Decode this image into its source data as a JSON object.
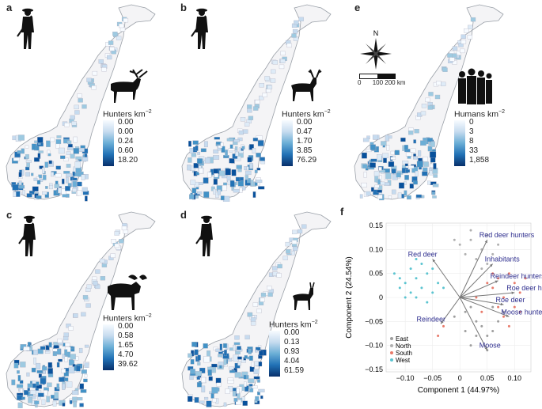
{
  "panels": [
    {
      "label": "a",
      "legend_title": "Hunters km",
      "exponent": "−2",
      "ticks": [
        "0.00",
        "0.00",
        "0.24",
        "0.60",
        "18.20"
      ],
      "animal": "reindeer-icon"
    },
    {
      "label": "b",
      "legend_title": "Hunters km",
      "exponent": "−2",
      "ticks": [
        "0.00",
        "0.47",
        "1.70",
        "3.85",
        "76.29"
      ],
      "animal": "red-deer-icon"
    },
    {
      "label": "e",
      "legend_title": "Humans km",
      "exponent": "−2",
      "ticks": [
        "0",
        "3",
        "8",
        "33",
        "1,858"
      ],
      "animal": "humans-icon"
    },
    {
      "label": "c",
      "legend_title": "Hunters km",
      "exponent": "−2",
      "ticks": [
        "0.00",
        "0.58",
        "1.65",
        "4.70",
        "39.62"
      ],
      "animal": "moose-icon"
    },
    {
      "label": "d",
      "legend_title": "Hunters km",
      "exponent": "−2",
      "ticks": [
        "0.00",
        "0.13",
        "0.93",
        "4.04",
        "61.59"
      ],
      "animal": "roe-deer-icon"
    }
  ],
  "compass": {
    "north": "N",
    "scale_labels": [
      "0",
      "100",
      "200 km"
    ]
  },
  "colors": {
    "dark_blue": "#08519c",
    "mid_blue": "#4292c6",
    "light_blue": "#c6dbef",
    "east": "#9e9e9e",
    "north": "#b0b0b0",
    "south": "#e87a6a",
    "west": "#5bc4d0",
    "arrow": "#777777",
    "arrow_label": "#2f2f8f"
  },
  "chart_data": {
    "label": "f",
    "type": "scatter",
    "title": "",
    "xlabel": "Component 1 (44.97%)",
    "ylabel": "Component 2 (24.54%)",
    "xlim": [
      -0.135,
      0.13
    ],
    "ylim": [
      -0.155,
      0.155
    ],
    "xticks": [
      -0.1,
      -0.05,
      0,
      0.05,
      0.1
    ],
    "xtick_labels": [
      "−0.10",
      "−0.05",
      "0",
      "0.05",
      "0.10"
    ],
    "yticks": [
      -0.15,
      -0.1,
      -0.05,
      0,
      0.05,
      0.1,
      0.15
    ],
    "ytick_labels": [
      "−0.15",
      "−0.10",
      "−0.05",
      "0",
      "0.05",
      "0.10",
      "0.15"
    ],
    "grid": true,
    "legend": {
      "position": "bottom-left",
      "entries": [
        "East",
        "North",
        "South",
        "West"
      ]
    },
    "series": [
      {
        "name": "East",
        "points": [
          [
            0.01,
            -0.03
          ],
          [
            0.03,
            -0.05
          ],
          [
            0.05,
            -0.08
          ],
          [
            0.02,
            -0.1
          ],
          [
            0.06,
            -0.02
          ],
          [
            0.04,
            -0.06
          ],
          [
            -0.01,
            -0.04
          ],
          [
            0.07,
            -0.05
          ],
          [
            0.03,
            -0.08
          ],
          [
            0.05,
            -0.11
          ],
          [
            0.01,
            -0.07
          ],
          [
            0.08,
            -0.03
          ],
          [
            0.02,
            -0.02
          ],
          [
            0.06,
            -0.07
          ]
        ]
      },
      {
        "name": "North",
        "points": [
          [
            0.02,
            0.12
          ],
          [
            0.04,
            0.1
          ],
          [
            0.0,
            0.11
          ],
          [
            0.05,
            0.13
          ],
          [
            0.03,
            0.08
          ],
          [
            0.06,
            0.09
          ],
          [
            0.01,
            0.09
          ],
          [
            -0.01,
            0.12
          ],
          [
            0.04,
            0.06
          ],
          [
            0.07,
            0.11
          ],
          [
            0.02,
            0.14
          ],
          [
            0.05,
            0.07
          ]
        ]
      },
      {
        "name": "South",
        "points": [
          [
            0.06,
            0.02
          ],
          [
            0.08,
            0.0
          ],
          [
            0.1,
            0.03
          ],
          [
            0.07,
            -0.02
          ],
          [
            0.09,
            0.05
          ],
          [
            0.11,
            0.01
          ],
          [
            0.05,
            0.03
          ],
          [
            0.08,
            -0.04
          ],
          [
            0.1,
            -0.02
          ],
          [
            0.04,
            -0.03
          ],
          [
            0.12,
            0.04
          ],
          [
            0.06,
            0.05
          ],
          [
            0.03,
            0.0
          ],
          [
            -0.04,
            -0.08
          ],
          [
            -0.03,
            -0.06
          ],
          [
            0.09,
            -0.06
          ],
          [
            0.07,
            0.04
          ],
          [
            0.11,
            -0.03
          ]
        ]
      },
      {
        "name": "West",
        "points": [
          [
            -0.08,
            0.04
          ],
          [
            -0.1,
            0.03
          ],
          [
            -0.07,
            0.02
          ],
          [
            -0.09,
            0.06
          ],
          [
            -0.06,
            0.05
          ],
          [
            -0.11,
            0.02
          ],
          [
            -0.05,
            0.01
          ],
          [
            -0.08,
            0.0
          ],
          [
            -0.12,
            0.05
          ],
          [
            -0.07,
            0.07
          ],
          [
            -0.04,
            0.03
          ],
          [
            -0.09,
            0.01
          ],
          [
            -0.1,
            0.0
          ],
          [
            -0.06,
            -0.01
          ],
          [
            -0.03,
            0.02
          ],
          [
            -0.08,
            0.08
          ],
          [
            -0.05,
            0.06
          ],
          [
            -0.11,
            0.04
          ]
        ]
      }
    ],
    "vectors": [
      {
        "label": "Red deer hunters",
        "x": 0.05,
        "y": 0.12
      },
      {
        "label": "Red deer",
        "x": -0.05,
        "y": 0.08
      },
      {
        "label": "Inhabitants",
        "x": 0.06,
        "y": 0.07
      },
      {
        "label": "Reindeer hunters",
        "x": 0.07,
        "y": 0.035
      },
      {
        "label": "Roe deer hunters",
        "x": 0.1,
        "y": 0.01
      },
      {
        "label": "Roe deer",
        "x": 0.08,
        "y": -0.015
      },
      {
        "label": "Moose hunters",
        "x": 0.09,
        "y": -0.04
      },
      {
        "label": "Reindeer",
        "x": -0.035,
        "y": -0.055
      },
      {
        "label": "Moose",
        "x": 0.05,
        "y": -0.11
      }
    ]
  }
}
